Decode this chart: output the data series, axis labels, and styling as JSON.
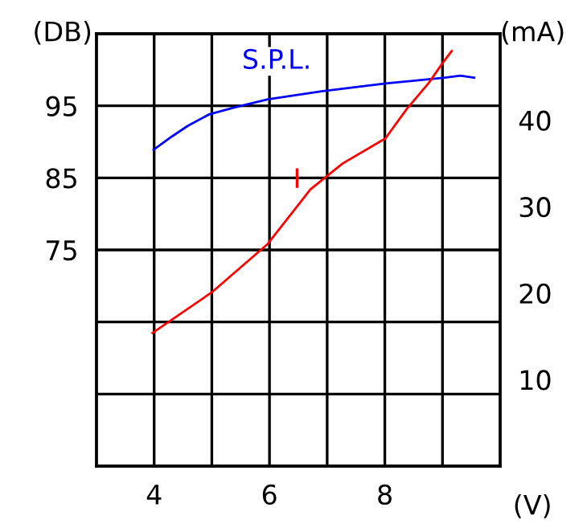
{
  "chart_data": {
    "type": "line",
    "xlabel": "(V)",
    "ylabel": "(DB)",
    "y2label": "(mA)",
    "xlim": [
      3,
      10
    ],
    "ylim": [
      45,
      105
    ],
    "y2lim": [
      0,
      50
    ],
    "xticks": [
      4,
      {
        "value": 5,
        "label": null
      },
      6,
      {
        "value": 7,
        "label": null
      },
      8,
      {
        "value": 9,
        "label": null
      }
    ],
    "yticks": [
      {
        "value": 55,
        "label": null
      },
      {
        "value": 65,
        "label": null
      },
      75,
      85,
      95
    ],
    "y2ticks": [
      10,
      20,
      30,
      40
    ],
    "grid": true,
    "legend": false,
    "marker": "none",
    "line_style": "solid",
    "series": [
      {
        "name": "S.P.L.",
        "color": "#0000ff",
        "x": [
          3.99,
          4.3,
          4.58,
          4.95,
          5.41,
          5.97,
          6.9,
          8.01,
          9.04,
          9.31,
          9.55
        ],
        "values": [
          88.9,
          90.7,
          92.2,
          93.8,
          94.8,
          95.9,
          97.0,
          98.1,
          98.9,
          99.2,
          98.9
        ]
      },
      {
        "name": "I",
        "color": "#ff0000",
        "axis": "y2",
        "x": [
          3.97,
          5.0,
          5.97,
          6.71,
          7.27,
          8.01,
          8.38,
          8.76,
          8.99,
          9.16
        ],
        "values": [
          15.4,
          20.1,
          25.7,
          32.0,
          35.0,
          37.9,
          41.3,
          44.3,
          46.5,
          48.0
        ]
      }
    ]
  }
}
